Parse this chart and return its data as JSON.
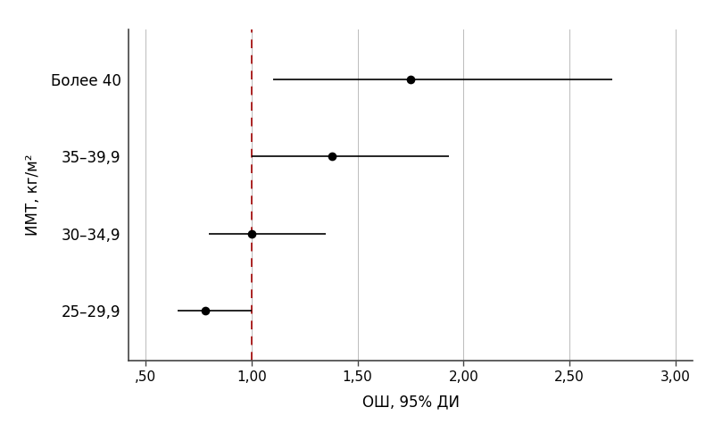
{
  "categories": [
    "25–29,9",
    "30–34,9",
    "35–39,9",
    "Более 40"
  ],
  "points": [
    0.78,
    1.0,
    1.38,
    1.75
  ],
  "ci_low": [
    0.65,
    0.8,
    1.0,
    1.1
  ],
  "ci_high": [
    1.0,
    1.35,
    1.93,
    2.7
  ],
  "ref_line": 1.0,
  "xlim": [
    0.42,
    3.08
  ],
  "xticks": [
    0.5,
    1.0,
    1.5,
    2.0,
    2.5,
    3.0
  ],
  "xtick_labels": [
    ",50",
    "1,00",
    "1,50",
    "2,00",
    "2,50",
    "3,00"
  ],
  "xlabel": "ОШ, 95% ДИ",
  "ylabel": "ИМТ, кг/м²",
  "point_color": "#000000",
  "point_size": 7,
  "line_color": "#000000",
  "line_width": 1.2,
  "ref_line_color": "#aa2222",
  "ref_line_style": "--",
  "grid_color": "#bbbbbb",
  "grid_linewidth": 0.7,
  "spine_color": "#444444",
  "background_color": "#ffffff",
  "xlabel_fontsize": 12,
  "ylabel_fontsize": 12,
  "tick_fontsize": 11,
  "category_fontsize": 12
}
